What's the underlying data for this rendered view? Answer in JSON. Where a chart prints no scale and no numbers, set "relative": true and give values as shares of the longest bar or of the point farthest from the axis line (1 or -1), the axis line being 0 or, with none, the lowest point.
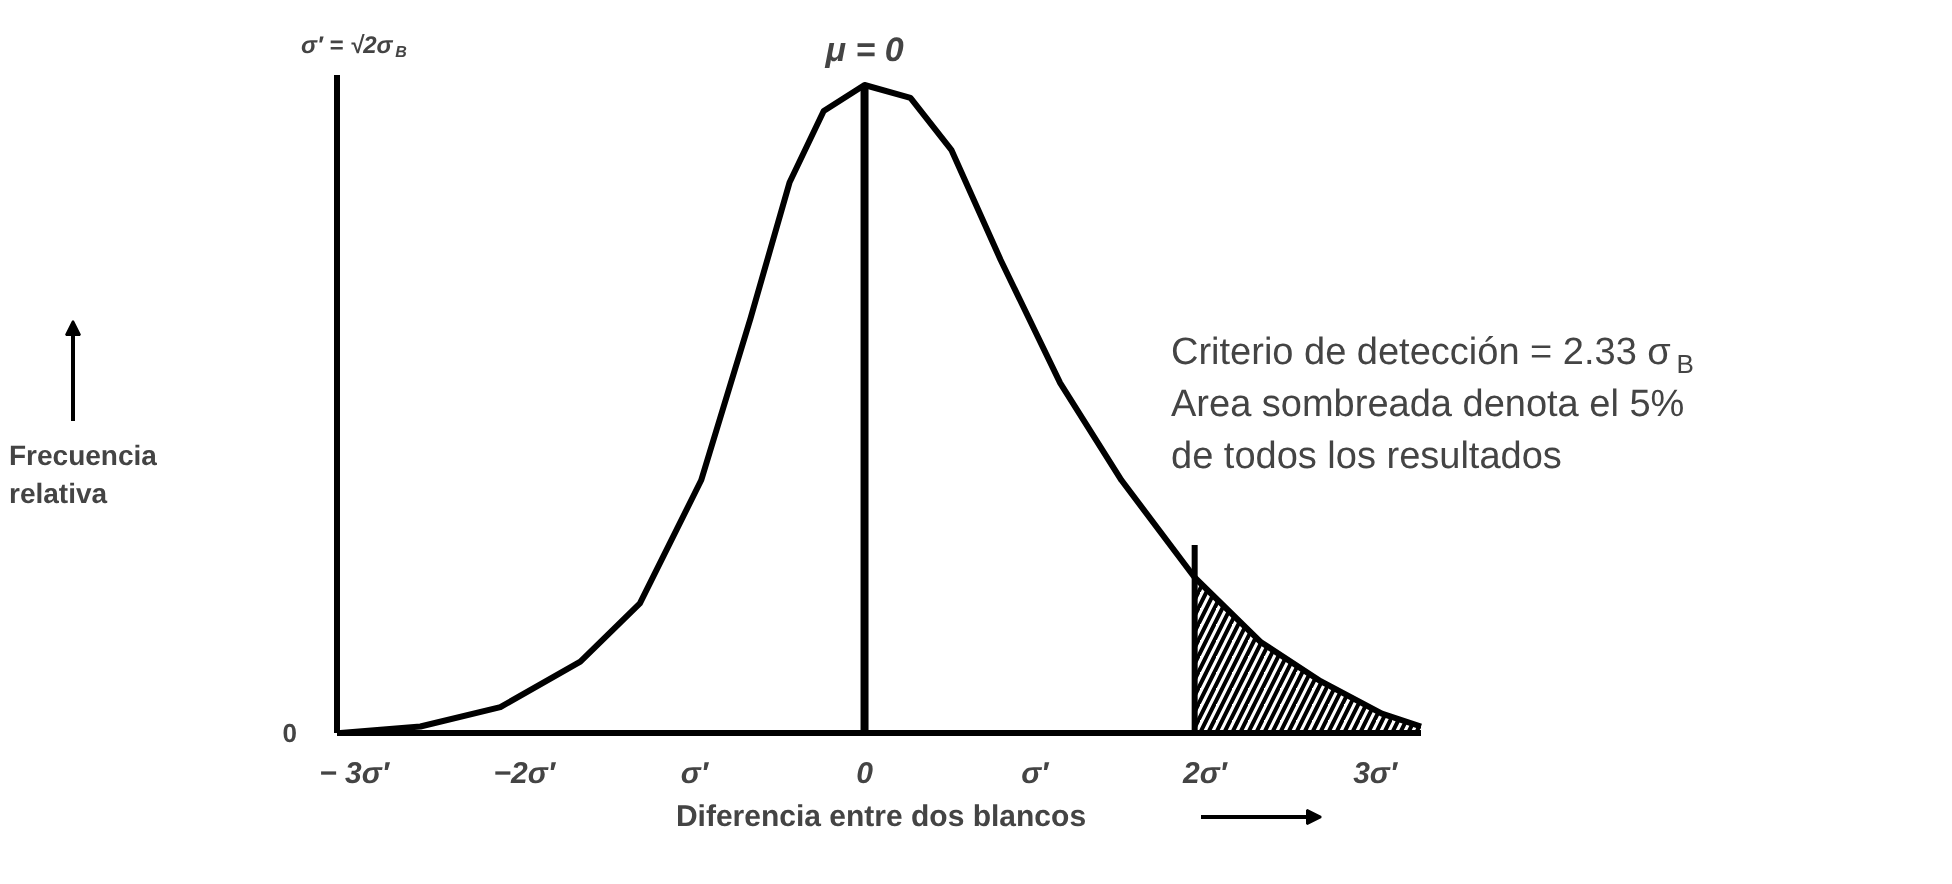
{
  "chart_data": {
    "type": "line",
    "relative": true,
    "xlabel": "Diferencia entre dos blancos",
    "x": [
      -3.08,
      -2.61,
      -2.14,
      -1.67,
      -1.32,
      -0.96,
      -0.67,
      -0.44,
      -0.24,
      0,
      0.27,
      0.51,
      0.8,
      1.15,
      1.51,
      1.94,
      2.33,
      2.68,
      3.04,
      3.27
    ],
    "series": [
      {
        "color": "#000000",
        "values": [
          0,
          0.01,
          0.04,
          0.11,
          0.2,
          0.39,
          0.64,
          0.85,
          0.96,
          1,
          0.98,
          0.9,
          0.73,
          0.54,
          0.39,
          0.24,
          0.14,
          0.08,
          0.03,
          0.01
        ]
      },
      {
        "type": "area",
        "color": "#000000",
        "x": [
          1.94,
          2.33,
          2.68,
          3.04,
          3.27
        ],
        "values": [
          0.24,
          0.14,
          0.08,
          0.03,
          0.01
        ]
      }
    ],
    "xlim": [
      -3.1,
      3.27
    ],
    "xticks": [
      {
        "value": -3,
        "label": "− 3σ′"
      },
      {
        "value": -2,
        "label": "−2σ′"
      },
      {
        "value": -1,
        "label": "σ′"
      },
      {
        "value": 0,
        "label": "0"
      },
      {
        "value": 1,
        "label": "σ′"
      },
      {
        "value": 2,
        "label": "2σ′"
      },
      {
        "value": 3,
        "label": "3σ′"
      }
    ],
    "ref_lines": [
      {
        "axis": "x",
        "value": 0,
        "label": "μ = 0",
        "color": "#000000"
      },
      {
        "axis": "x",
        "value": 1.94,
        "color": "#000000"
      }
    ],
    "annotations": [
      "σ′ = √2σ$_{B}$",
      "Criterio de detección = 2.33 σ$_{B}$",
      "Area sombreada denota el 5%",
      "de todos los resultados",
      "0",
      "Frecuencia relativa"
    ],
    "grid": false,
    "marker": "none",
    "line_style": "solid"
  }
}
